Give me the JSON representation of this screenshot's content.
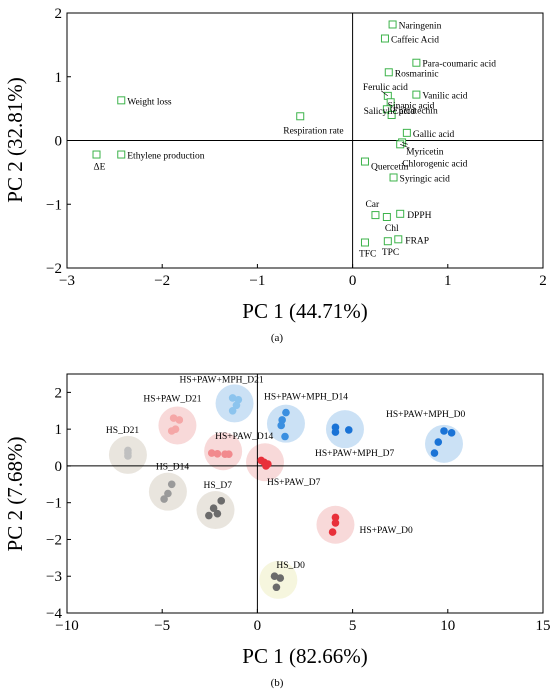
{
  "chart_data": [
    {
      "type": "scatter",
      "subfigure_label": "(a)",
      "xlabel": "PC 1 (44.71%)",
      "ylabel": "PC 2 (32.81%)",
      "xlim": [
        -3,
        2
      ],
      "ylim": [
        -2,
        2
      ],
      "xticks": [
        "−3",
        "−2",
        "−1",
        "0",
        "1",
        "2"
      ],
      "yticks": [
        "−2",
        "−1",
        "0",
        "1",
        "2"
      ],
      "marker": "open-square",
      "marker_color": "#3cb34a",
      "points": [
        {
          "label": "Naringenin",
          "x": 0.42,
          "y": 1.82
        },
        {
          "label": "Caffeic Acid",
          "x": 0.34,
          "y": 1.6
        },
        {
          "label": "Para-coumaric acid",
          "x": 0.67,
          "y": 1.22
        },
        {
          "label": "Rosmarinic",
          "x": 0.38,
          "y": 1.07
        },
        {
          "label": "Ferulic acid",
          "x": 0.37,
          "y": 0.7
        },
        {
          "label": "Vanilic acid",
          "x": 0.67,
          "y": 0.72
        },
        {
          "label": "Sinapic acid",
          "x": 0.4,
          "y": 0.6
        },
        {
          "label": "Epicatechin",
          "x": 0.36,
          "y": 0.49
        },
        {
          "label": "Salicylic acid",
          "x": 0.41,
          "y": 0.4
        },
        {
          "label": "Gallic acid",
          "x": 0.57,
          "y": 0.12
        },
        {
          "label": "Myricetin",
          "x": 0.52,
          "y": -0.03
        },
        {
          "label": "Chlorogenic acid",
          "x": 0.5,
          "y": -0.06
        },
        {
          "label": "Quercetin",
          "x": 0.13,
          "y": -0.33
        },
        {
          "label": "Syringic acid",
          "x": 0.43,
          "y": -0.58
        },
        {
          "label": "Car",
          "x": 0.24,
          "y": -1.17
        },
        {
          "label": "Chl",
          "x": 0.36,
          "y": -1.2
        },
        {
          "label": "DPPH",
          "x": 0.5,
          "y": -1.15
        },
        {
          "label": "FRAP",
          "x": 0.48,
          "y": -1.55
        },
        {
          "label": "TPC",
          "x": 0.37,
          "y": -1.58
        },
        {
          "label": "TFC",
          "x": 0.13,
          "y": -1.6
        },
        {
          "label": "Weight loss",
          "x": -2.43,
          "y": 0.63
        },
        {
          "label": "Respiration rate",
          "x": -0.55,
          "y": 0.38
        },
        {
          "label": "ΔE",
          "x": -2.69,
          "y": -0.22
        },
        {
          "label": "Ethylene production",
          "x": -2.43,
          "y": -0.22
        }
      ]
    },
    {
      "type": "scatter",
      "subfigure_label": "(b)",
      "xlabel": "PC 1 (82.66%)",
      "ylabel": "PC 2 (7.68%)",
      "xlim": [
        -10,
        15
      ],
      "ylim": [
        -4,
        2.5
      ],
      "xticks": [
        "−10",
        "−5",
        "0",
        "5",
        "10",
        "15"
      ],
      "yticks": [
        "−4",
        "−3",
        "−2",
        "−1",
        "0",
        "1",
        "2"
      ],
      "groups": [
        {
          "label": "HS_D0",
          "color": "#6b6b6b",
          "ellipse": "#f4f4d8",
          "center": [
            1.1,
            -3.1
          ],
          "points": [
            [
              0.9,
              -3.0
            ],
            [
              1.2,
              -3.05
            ],
            [
              1.0,
              -3.3
            ]
          ]
        },
        {
          "label": "HS_D7",
          "color": "#6b6b6b",
          "ellipse": "#e5e1d8",
          "center": [
            -2.2,
            -1.2
          ],
          "points": [
            [
              -1.9,
              -0.95
            ],
            [
              -2.3,
              -1.15
            ],
            [
              -2.55,
              -1.35
            ],
            [
              -2.1,
              -1.3
            ]
          ]
        },
        {
          "label": "HS_D14",
          "color": "#9a9a9a",
          "ellipse": "#e5e1d8",
          "center": [
            -4.7,
            -0.7
          ],
          "points": [
            [
              -4.5,
              -0.5
            ],
            [
              -4.7,
              -0.75
            ],
            [
              -4.9,
              -0.9
            ]
          ]
        },
        {
          "label": "HS_D21",
          "color": "#c0c0c0",
          "ellipse": "#e5e1d8",
          "center": [
            -6.8,
            0.3
          ],
          "points": [
            [
              -6.8,
              0.42
            ],
            [
              -6.8,
              0.35
            ],
            [
              -6.8,
              0.27
            ]
          ]
        },
        {
          "label": "HS+PAW_D0",
          "color": "#e8303a",
          "ellipse": "#f7d2d2",
          "center": [
            4.1,
            -1.6
          ],
          "points": [
            [
              4.1,
              -1.4
            ],
            [
              4.1,
              -1.55
            ],
            [
              3.95,
              -1.8
            ]
          ]
        },
        {
          "label": "HS+PAW_D7",
          "color": "#e8303a",
          "ellipse": "#f7d2d2",
          "center": [
            0.4,
            0.1
          ],
          "points": [
            [
              0.2,
              0.15
            ],
            [
              0.35,
              0.1
            ],
            [
              0.55,
              0.05
            ],
            [
              0.45,
              0.0
            ]
          ]
        },
        {
          "label": "HS+PAW_D14",
          "color": "#f28a8e",
          "ellipse": "#f7d2d2",
          "center": [
            -1.8,
            0.4
          ],
          "points": [
            [
              -2.4,
              0.35
            ],
            [
              -2.1,
              0.33
            ],
            [
              -1.7,
              0.32
            ],
            [
              -1.5,
              0.32
            ]
          ]
        },
        {
          "label": "HS+PAW_D21",
          "color": "#f5a7a7",
          "ellipse": "#f7d2d2",
          "center": [
            -4.2,
            1.1
          ],
          "points": [
            [
              -4.4,
              1.3
            ],
            [
              -4.1,
              1.25
            ],
            [
              -4.3,
              1.0
            ],
            [
              -4.5,
              0.95
            ]
          ]
        },
        {
          "label": "HS+PAW+MPH_D0",
          "color": "#1a73d6",
          "ellipse": "#c2dcf3",
          "center": [
            9.8,
            0.6
          ],
          "points": [
            [
              9.8,
              0.95
            ],
            [
              10.2,
              0.9
            ],
            [
              9.5,
              0.65
            ],
            [
              9.3,
              0.35
            ]
          ]
        },
        {
          "label": "HS+PAW+MPH_D7",
          "color": "#1a73d6",
          "ellipse": "#c2dcf3",
          "center": [
            4.6,
            1.0
          ],
          "points": [
            [
              4.1,
              1.05
            ],
            [
              4.8,
              0.98
            ],
            [
              4.1,
              0.92
            ]
          ]
        },
        {
          "label": "HS+PAW+MPH_D14",
          "color": "#3b8fe0",
          "ellipse": "#c2dcf3",
          "center": [
            1.5,
            1.15
          ],
          "points": [
            [
              1.5,
              1.45
            ],
            [
              1.3,
              1.25
            ],
            [
              1.25,
              1.1
            ],
            [
              1.45,
              0.8
            ]
          ]
        },
        {
          "label": "HS+PAW+MPH_D21",
          "color": "#8cc4ee",
          "ellipse": "#c2dcf3",
          "center": [
            -1.2,
            1.7
          ],
          "points": [
            [
              -1.3,
              1.85
            ],
            [
              -1.0,
              1.8
            ],
            [
              -1.1,
              1.65
            ],
            [
              -1.3,
              1.5
            ]
          ]
        }
      ]
    }
  ]
}
